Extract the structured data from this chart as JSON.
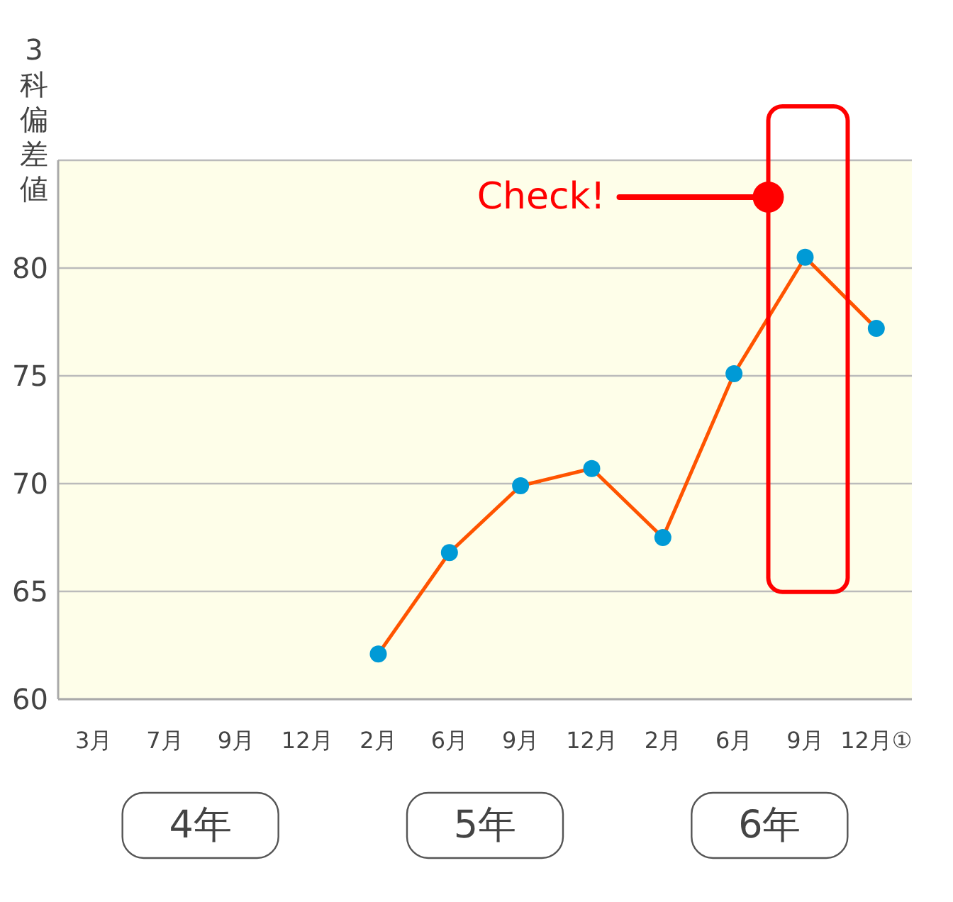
{
  "chart_data": {
    "type": "line",
    "ylabel": "3科偏差値",
    "categories": [
      "3月",
      "7月",
      "9月",
      "12月",
      "2月",
      "6月",
      "9月",
      "12月",
      "2月",
      "6月",
      "9月",
      "12月①"
    ],
    "series": [
      {
        "color": "#ff5400",
        "colors": [
          null,
          null,
          null,
          null,
          "#009ad6",
          "#009ad6",
          "#009ad6",
          "#009ad6",
          "#009ad6",
          "#009ad6",
          "#009ad6",
          "#009ad6"
        ],
        "values": [
          null,
          null,
          null,
          null,
          62.1,
          66.8,
          69.9,
          70.7,
          67.5,
          75.1,
          80.5,
          77.2
        ]
      }
    ],
    "ylim": [
      60,
      85
    ],
    "yticks": [
      60,
      65,
      70,
      75,
      80,
      {
        "value": 85,
        "label": null
      }
    ],
    "grid": "y",
    "marker": "circle",
    "line_style": "solid",
    "annotations": [
      "Check!",
      "4年",
      "5年",
      "6年"
    ]
  }
}
